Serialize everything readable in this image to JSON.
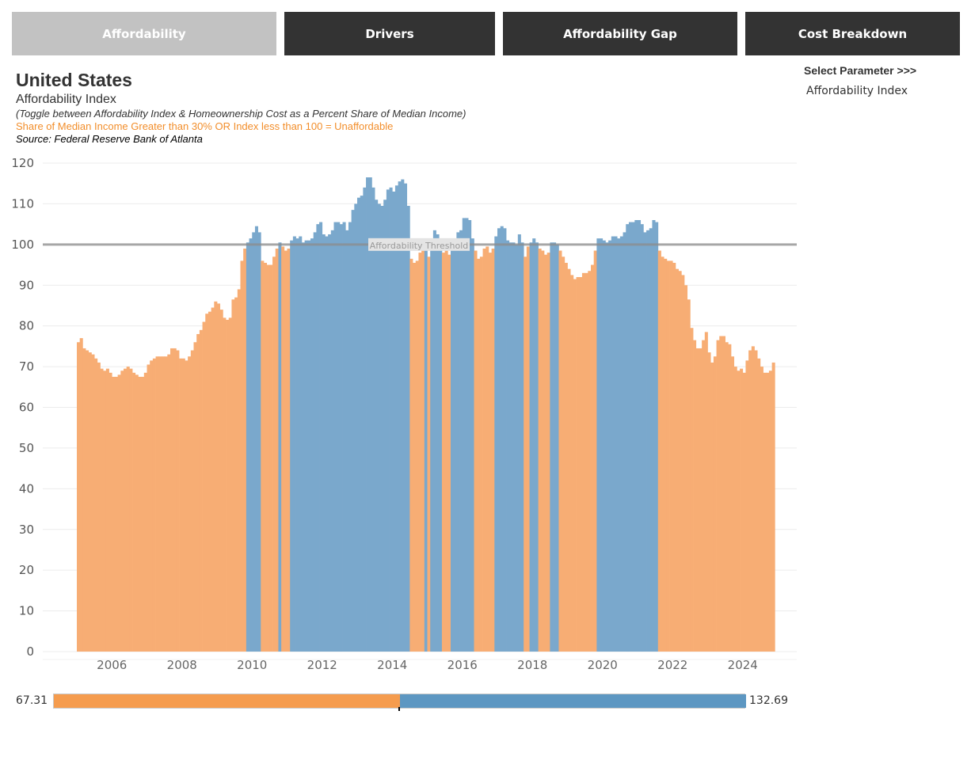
{
  "tabs": [
    {
      "label": "Affordability",
      "active": true
    },
    {
      "label": "Drivers",
      "active": false
    },
    {
      "label": "Affordability Gap",
      "active": false
    },
    {
      "label": "Cost Breakdown",
      "active": false
    }
  ],
  "header": {
    "title": "United States",
    "subtitle": "Affordability Index",
    "toggle_note": "(Toggle between Affordability Index & Homeownership Cost as a Percent Share of Median Income)",
    "unaffordable_note": "Share of Median Income Greater than 30% OR Index less than 100  = Unaffordable",
    "source": "Source: Federal Reserve Bank of Atlanta"
  },
  "parameter": {
    "label": "Select Parameter >>>",
    "value": "Affordability Index"
  },
  "legend": {
    "min_label": "67.31",
    "max_label": "132.69",
    "min": 67.31,
    "max": 132.69,
    "midpoint": 100
  },
  "colors": {
    "unaffordable": "#f28e2b",
    "affordable": "#4e87b8",
    "threshold": "#aaaaaa"
  },
  "chart_data": {
    "type": "bar",
    "title": "United States",
    "ylabel": "",
    "xlabel": "",
    "ylim": [
      0,
      120
    ],
    "yticks": [
      0,
      10,
      20,
      30,
      40,
      50,
      60,
      70,
      80,
      90,
      100,
      110,
      120
    ],
    "xticks": [
      "2006",
      "2008",
      "2010",
      "2012",
      "2014",
      "2016",
      "2018",
      "2020",
      "2022",
      "2024"
    ],
    "x_start": "2005-01",
    "x_interval": "month",
    "threshold": {
      "value": 100,
      "label": "Affordability Threshold"
    },
    "color_rule": "value >= 100 affordable (blue), value < 100 unaffordable (orange)",
    "values": [
      76,
      77,
      74.5,
      74,
      73.5,
      73,
      72,
      71,
      69.5,
      69,
      69.5,
      68.5,
      67.5,
      67.5,
      68,
      69,
      69.5,
      70,
      69.5,
      68.5,
      68,
      67.5,
      67.5,
      68.5,
      70.5,
      71.5,
      72,
      72.5,
      72.5,
      72.5,
      72.5,
      73,
      74.5,
      74.5,
      74,
      72,
      72,
      71.5,
      72.5,
      74,
      76,
      78,
      79,
      81,
      83,
      83.5,
      84.5,
      86,
      85.5,
      84,
      82,
      81.5,
      82,
      86.5,
      87,
      89,
      96,
      99,
      100.5,
      101.5,
      103,
      104.5,
      103,
      96,
      95.5,
      95,
      95,
      97,
      99,
      100.5,
      99.5,
      98.5,
      99,
      101,
      102,
      101.5,
      102,
      100.5,
      101,
      101,
      101.5,
      103,
      105,
      105.5,
      102.5,
      102,
      102.5,
      103.5,
      105.5,
      105.5,
      105,
      105.5,
      103.5,
      105.5,
      108.5,
      110,
      111.5,
      112,
      114,
      116.5,
      116.5,
      114,
      111,
      110,
      109.5,
      111,
      113.5,
      114,
      113,
      114.5,
      115.5,
      116,
      115,
      109.5,
      96.5,
      95.5,
      96,
      98,
      98.5,
      100.5,
      97,
      101.5,
      103.5,
      102.5,
      100.5,
      98,
      98.5,
      97.5,
      100,
      101,
      103,
      103.5,
      106.5,
      106.5,
      106,
      101.5,
      98.5,
      96.5,
      97,
      99,
      99.5,
      98,
      99,
      102,
      104,
      104.5,
      104,
      101,
      100.5,
      100.5,
      100,
      102.5,
      100.5,
      97,
      99.5,
      100.5,
      101.5,
      100.5,
      99,
      98.5,
      97.5,
      98,
      100.5,
      100.5,
      100,
      98.5,
      97,
      95.5,
      94,
      92.5,
      91.5,
      92,
      92,
      93,
      93,
      93.5,
      95,
      98.5,
      101.5,
      101.5,
      101,
      100.5,
      101,
      102,
      102,
      101.5,
      102,
      103,
      105,
      105.5,
      105.5,
      106,
      106,
      105,
      103,
      103.5,
      104,
      106,
      105.5,
      98.5,
      97,
      96.5,
      96,
      96,
      95.5,
      94,
      93.5,
      92.5,
      90,
      86.5,
      79.5,
      76.5,
      74.5,
      74.5,
      76.5,
      78.5,
      73.5,
      71,
      72.5,
      76.5,
      77.5,
      77.5,
      76,
      75.5,
      72.5,
      70,
      69,
      69.5,
      68.5,
      71.5,
      74,
      75,
      74,
      72,
      70,
      68.5,
      68.5,
      69,
      71
    ]
  }
}
